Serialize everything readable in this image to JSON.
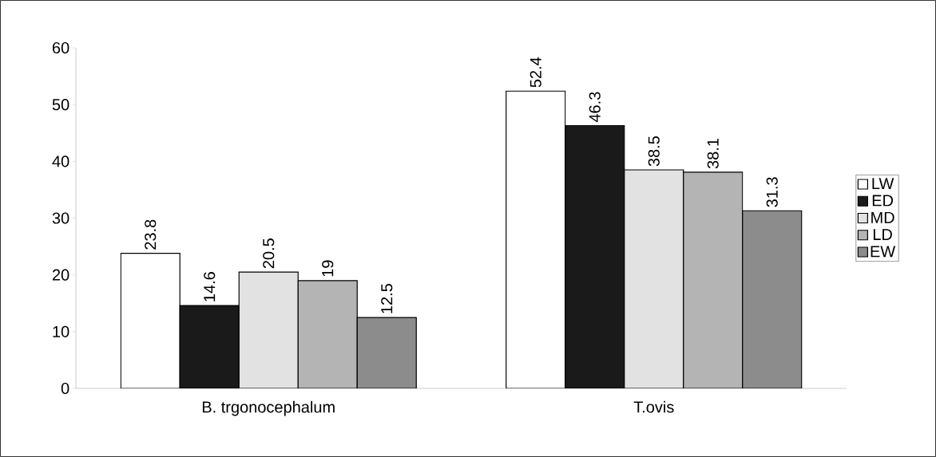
{
  "chart_data": {
    "type": "bar",
    "categories": [
      "B. trgonocephalum",
      "T.ovis"
    ],
    "series": [
      {
        "name": "LW",
        "color": "#ffffff",
        "values": [
          23.8,
          52.4
        ]
      },
      {
        "name": "ED",
        "color": "#1a1a1a",
        "values": [
          14.6,
          46.3
        ]
      },
      {
        "name": "MD",
        "color": "#e2e2e2",
        "values": [
          20.5,
          38.5
        ]
      },
      {
        "name": "LD",
        "color": "#b4b4b4",
        "values": [
          19,
          38.1
        ]
      },
      {
        "name": "EW",
        "color": "#8c8c8c",
        "values": [
          12.5,
          31.3
        ]
      }
    ],
    "ylim": [
      0,
      60
    ],
    "yticks": [
      0,
      10,
      20,
      30,
      40,
      50,
      60
    ],
    "data_labels": true,
    "legend": "right",
    "grid": false
  }
}
